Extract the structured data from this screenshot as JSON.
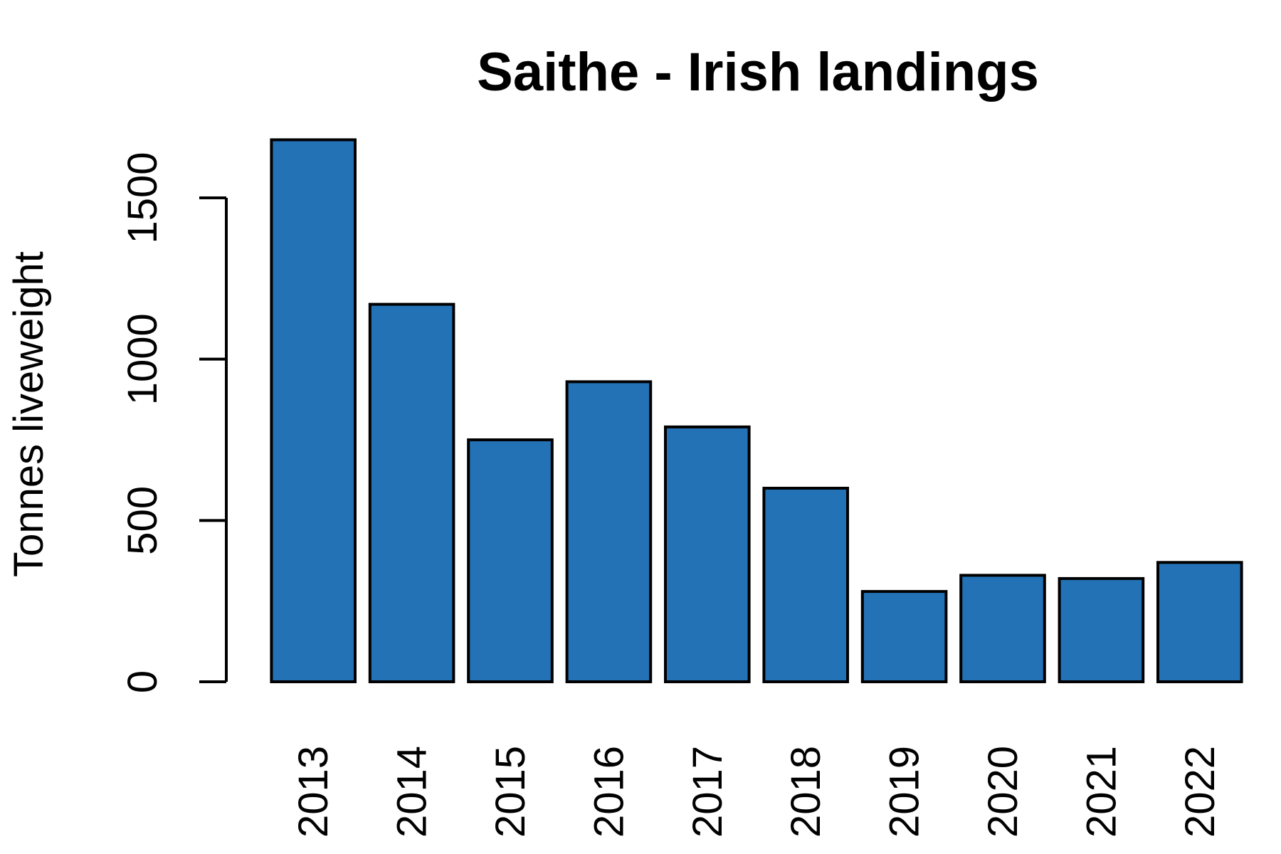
{
  "chart_data": {
    "type": "bar",
    "title": "Saithe - Irish landings",
    "xlabel": "",
    "ylabel": "Tonnes liveweight",
    "categories": [
      "2013",
      "2014",
      "2015",
      "2016",
      "2017",
      "2018",
      "2019",
      "2020",
      "2021",
      "2022"
    ],
    "values": [
      1680,
      1170,
      750,
      930,
      790,
      600,
      280,
      330,
      320,
      370
    ],
    "ylim": [
      0,
      1680
    ],
    "yticks": [
      0,
      500,
      1000,
      1500
    ],
    "bar_color": "#2372B5",
    "grid": false,
    "legend": "none"
  }
}
